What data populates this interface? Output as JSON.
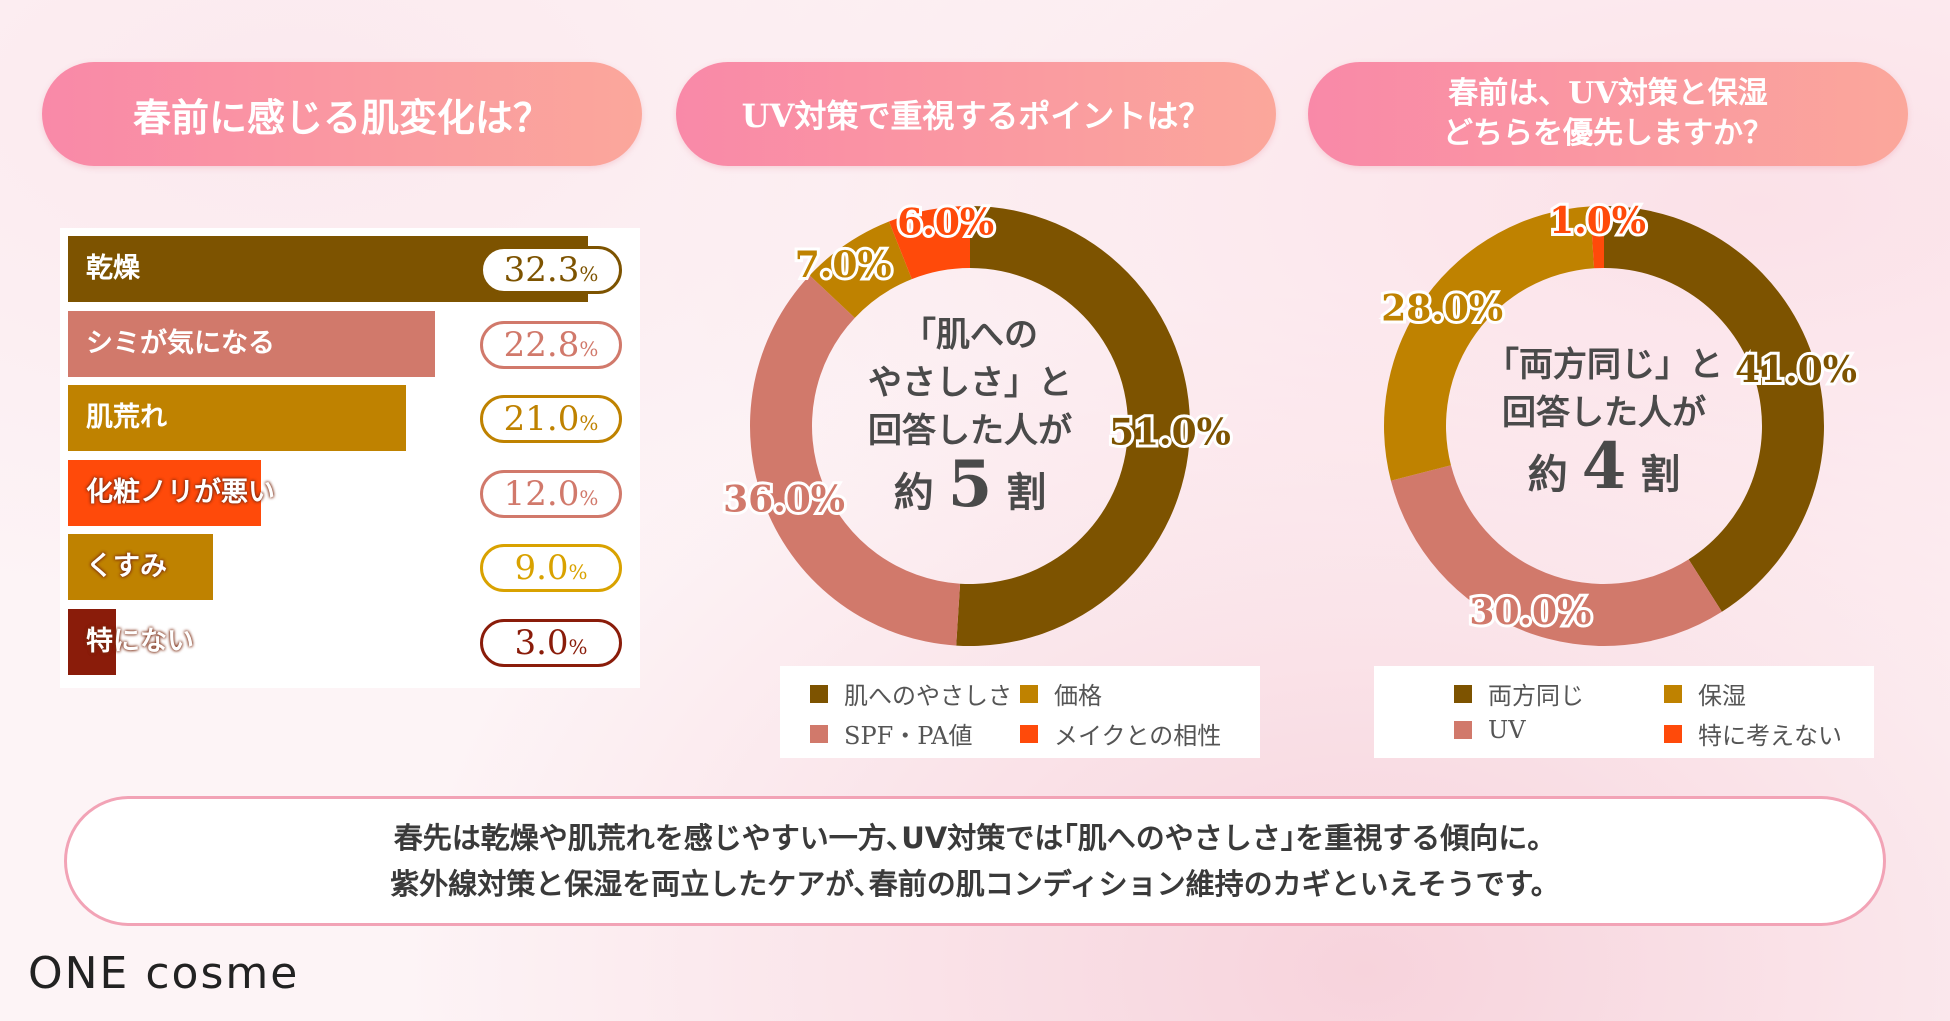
{
  "titles": {
    "q1": "春前に感じる肌変化は？",
    "q2": "UV対策で重視するポイントは？",
    "q3_line1": "春前は、UV対策と保湿",
    "q3_line2": "どちらを優先しますか？"
  },
  "colors": {
    "dark_brown": "#7d5300",
    "salmon": "#d1796b",
    "ochre": "#bf8200",
    "orange_red": "#ff4a0a",
    "gold": "#d9a200",
    "dark_red": "#8a1c0a",
    "title_gradient_start": "#f989a8",
    "title_gradient_end": "#fba79b"
  },
  "chart_data": [
    {
      "type": "bar",
      "orientation": "horizontal",
      "categories": [
        "乾燥",
        "シミが気になる",
        "肌荒れ",
        "化粧ノリが悪い",
        "くすみ",
        "特にない"
      ],
      "values": [
        32.3,
        22.8,
        21.0,
        12.0,
        9.0,
        3.0
      ],
      "value_labels": [
        "32.3",
        "22.8",
        "21.0",
        "12.0",
        "9.0",
        "3.0"
      ],
      "unit": "%",
      "bar_colors": [
        "#7d5300",
        "#d1796b",
        "#bf8200",
        "#ff4a0a",
        "#bf8200",
        "#8a1c0a"
      ],
      "pill_colors": [
        "#7d5300",
        "#d1796b",
        "#bf8200",
        "#d1796b",
        "#d9a200",
        "#8a1c0a"
      ]
    },
    {
      "type": "pie",
      "variant": "donut",
      "labels": [
        "肌へのやさしさ",
        "SPF・PA値",
        "価格",
        "メイクとの相性"
      ],
      "values": [
        51.0,
        36.0,
        7.0,
        6.0
      ],
      "value_labels": [
        "51.0%",
        "36.0%",
        "7.0%",
        "6.0%"
      ],
      "colors": [
        "#7d5300",
        "#d1796b",
        "#bf8200",
        "#ff4a0a"
      ],
      "center_text": [
        "「肌への",
        "やさしさ」と",
        "回答した人が"
      ],
      "center_big": {
        "prefix": "約",
        "number": "5",
        "suffix": "割"
      },
      "legend": [
        {
          "label": "肌へのやさしさ",
          "color": "#7d5300"
        },
        {
          "label": "価格",
          "color": "#bf8200"
        },
        {
          "label": "SPF・PA値",
          "color": "#d1796b"
        },
        {
          "label": "メイクとの相性",
          "color": "#ff4a0a"
        }
      ]
    },
    {
      "type": "pie",
      "variant": "donut",
      "labels": [
        "両方同じ",
        "UV",
        "保湿",
        "特に考えない"
      ],
      "values": [
        41.0,
        30.0,
        28.0,
        1.0
      ],
      "value_labels": [
        "41.0%",
        "30.0%",
        "28.0%",
        "1.0%"
      ],
      "colors": [
        "#7d5300",
        "#d1796b",
        "#bf8200",
        "#ff4a0a"
      ],
      "center_text": [
        "「両方同じ」と",
        "回答した人が"
      ],
      "center_big": {
        "prefix": "約",
        "number": "4",
        "suffix": "割"
      },
      "legend": [
        {
          "label": "両方同じ",
          "color": "#7d5300"
        },
        {
          "label": "保湿",
          "color": "#bf8200"
        },
        {
          "label": "UV",
          "color": "#d1796b"
        },
        {
          "label": "特に考えない",
          "color": "#ff4a0a"
        }
      ]
    }
  ],
  "summary": {
    "line1": "春先は乾燥や肌荒れを感じやすい一方､UV対策では｢肌へのやさしさ｣を重視する傾向に。",
    "line2": "紫外線対策と保湿を両立したケアが､春前の肌コンディション維持のカギといえそうです。"
  },
  "brand": {
    "logo_text": "ONE cosme"
  }
}
